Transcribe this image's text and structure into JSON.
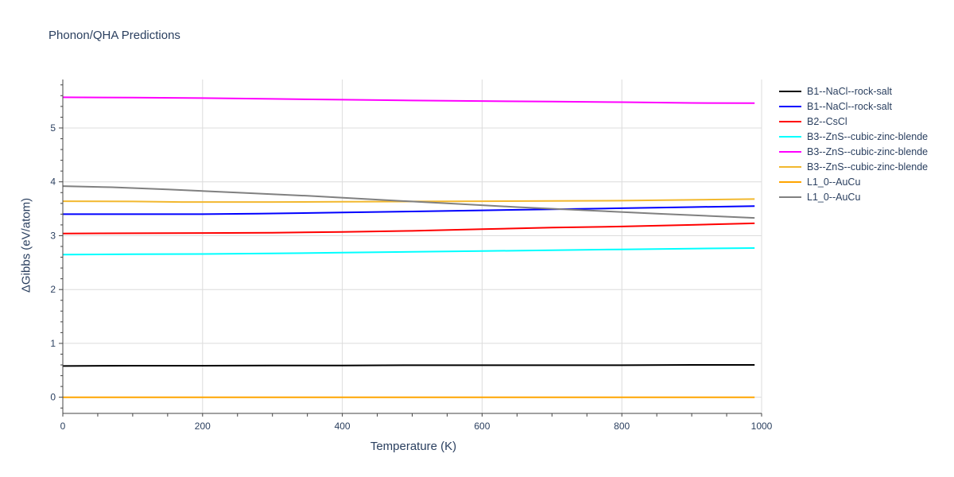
{
  "chart_data": {
    "type": "line",
    "title": "Phonon/QHA Predictions",
    "xlabel": "Temperature (K)",
    "ylabel": "ΔGibbs (eV/atom)",
    "xlim": [
      0,
      1000
    ],
    "ylim": [
      -0.3,
      5.9
    ],
    "xticks": [
      0,
      200,
      400,
      600,
      800,
      1000
    ],
    "yticks": [
      0,
      1,
      2,
      3,
      4,
      5
    ],
    "grid": true,
    "legend_position": "right",
    "series": [
      {
        "name": "B1--NaCl--rock-salt",
        "color": "#000000",
        "x": [
          0,
          100,
          200,
          300,
          400,
          500,
          600,
          700,
          800,
          900,
          990
        ],
        "y": [
          0.58,
          0.585,
          0.585,
          0.59,
          0.59,
          0.595,
          0.595,
          0.595,
          0.595,
          0.6,
          0.6
        ]
      },
      {
        "name": "B1--NaCl--rock-salt",
        "color": "#0000ff",
        "x": [
          0,
          100,
          200,
          280,
          400,
          500,
          600,
          700,
          800,
          900,
          990
        ],
        "y": [
          3.4,
          3.4,
          3.4,
          3.41,
          3.43,
          3.45,
          3.47,
          3.49,
          3.51,
          3.53,
          3.55
        ]
      },
      {
        "name": "B2--CsCl",
        "color": "#ff0000",
        "x": [
          0,
          100,
          200,
          300,
          400,
          500,
          600,
          700,
          800,
          900,
          990
        ],
        "y": [
          3.04,
          3.045,
          3.05,
          3.055,
          3.07,
          3.09,
          3.12,
          3.15,
          3.17,
          3.2,
          3.23
        ]
      },
      {
        "name": "B3--ZnS--cubic-zinc-blende",
        "color": "#00ffff",
        "x": [
          0,
          100,
          200,
          300,
          400,
          500,
          600,
          700,
          800,
          900,
          990
        ],
        "y": [
          2.65,
          2.655,
          2.66,
          2.67,
          2.685,
          2.7,
          2.715,
          2.73,
          2.745,
          2.76,
          2.77
        ]
      },
      {
        "name": "B3--ZnS--cubic-zinc-blende",
        "color": "#ff00ff",
        "x": [
          0,
          100,
          200,
          300,
          400,
          500,
          600,
          700,
          800,
          900,
          990
        ],
        "y": [
          5.57,
          5.565,
          5.555,
          5.54,
          5.525,
          5.51,
          5.5,
          5.49,
          5.48,
          5.465,
          5.46
        ]
      },
      {
        "name": "B3--ZnS--cubic-zinc-blende",
        "color": "#f2b82e",
        "x": [
          0,
          100,
          170,
          200,
          300,
          400,
          500,
          600,
          700,
          800,
          900,
          990
        ],
        "y": [
          3.64,
          3.635,
          3.625,
          3.625,
          3.625,
          3.63,
          3.635,
          3.64,
          3.645,
          3.65,
          3.665,
          3.68
        ]
      },
      {
        "name": "L1_0--AuCu",
        "color": "#ffa500",
        "x": [
          0,
          200,
          400,
          600,
          800,
          990
        ],
        "y": [
          0.0,
          0.0,
          0.0,
          0.0,
          0.0,
          0.0
        ]
      },
      {
        "name": "L1_0--AuCu",
        "color": "#808080",
        "x": [
          0,
          70,
          150,
          250,
          350,
          450,
          550,
          650,
          750,
          850,
          990
        ],
        "y": [
          3.92,
          3.9,
          3.86,
          3.8,
          3.74,
          3.67,
          3.6,
          3.53,
          3.47,
          3.41,
          3.33
        ]
      }
    ]
  }
}
